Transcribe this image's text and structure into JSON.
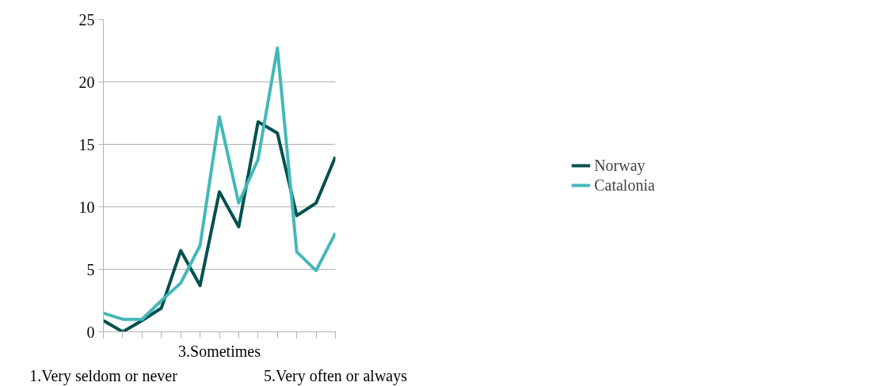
{
  "chart_data": {
    "type": "line",
    "categories": [
      "1.Very seldom or never",
      null,
      null,
      null,
      null,
      null,
      "3.Sometimes",
      null,
      null,
      null,
      null,
      null,
      "5.Very often or always"
    ],
    "series": [
      {
        "name": "Norway",
        "color": "#00504f",
        "values": [
          0.9,
          0,
          0.9,
          1.9,
          6.5,
          3.7,
          11.2,
          8.4,
          16.8,
          15.9,
          9.3,
          10.3,
          14.0
        ]
      },
      {
        "name": "Catalonia",
        "color": "#44b8b8",
        "values": [
          1.5,
          1.0,
          1.0,
          2.5,
          3.9,
          6.9,
          17.2,
          10.3,
          13.8,
          22.7,
          6.4,
          4.9,
          7.9
        ]
      }
    ],
    "ylim": [
      0,
      25
    ],
    "yticks": [
      0,
      5,
      10,
      15,
      20,
      25
    ],
    "grid": "y",
    "legend": "right",
    "marker": "none",
    "line_style": "solid"
  }
}
